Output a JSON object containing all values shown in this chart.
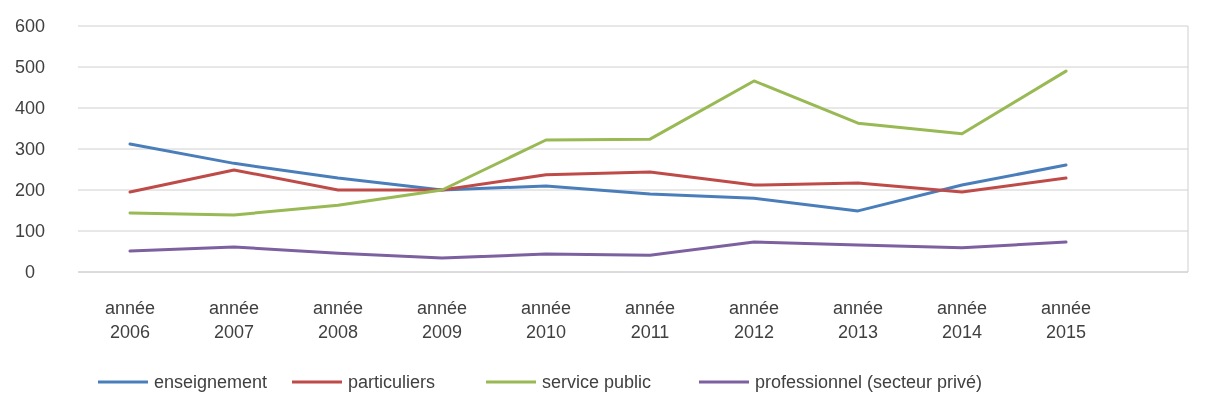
{
  "chart_data": {
    "type": "line",
    "categories": [
      "année 2006",
      "année 2007",
      "année 2008",
      "année 2009",
      "année 2010",
      "année 2011",
      "année 2012",
      "année 2013",
      "année 2014",
      "année 2015"
    ],
    "series": [
      {
        "name": "enseignement",
        "color": "#4a7ebb",
        "values": [
          312,
          265,
          229,
          200,
          210,
          190,
          180,
          149,
          212,
          261
        ]
      },
      {
        "name": "particuliers",
        "color": "#be4b48",
        "values": [
          195,
          249,
          200,
          200,
          237,
          244,
          212,
          217,
          195,
          229
        ]
      },
      {
        "name": "service public",
        "color": "#98b954",
        "values": [
          144,
          139,
          163,
          200,
          322,
          324,
          466,
          363,
          337,
          490
        ]
      },
      {
        "name": "professionnel (secteur privé)",
        "color": "#7d60a0",
        "values": [
          51,
          61,
          46,
          34,
          44,
          41,
          73,
          66,
          59,
          73
        ]
      }
    ],
    "ylim": [
      0,
      600
    ],
    "yticks": [
      0,
      100,
      200,
      300,
      400,
      500,
      600
    ],
    "grid": "y",
    "legend": "bottom",
    "marker": "none",
    "line_style": "solid"
  }
}
